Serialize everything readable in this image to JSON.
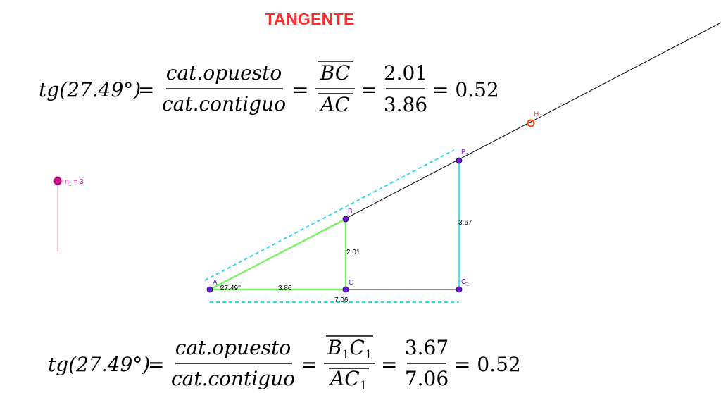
{
  "title": "TANGENTE",
  "colors": {
    "title": "#ff2a2a",
    "small_triangle": "#7ff06a",
    "big_triangle_leg": "#47e3ee",
    "dashed_guide": "#34d6ee",
    "point": "#6a1fd6",
    "slider": "#e0119a",
    "point_h": "#ff3a00"
  },
  "formula1": {
    "lhs": "tg(27.49°)",
    "eq": "=",
    "num1": "cat.opuesto",
    "den1": "cat.contiguo",
    "num2": "BC",
    "den2": "AC",
    "num3": "2.01",
    "den3": "3.86",
    "result": "= 0.52"
  },
  "formula2": {
    "lhs": "tg(27.49°)",
    "eq": "=",
    "num1": "cat.opuesto",
    "den1": "cat.contiguo",
    "num2_main1": "B",
    "num2_sub1": "1",
    "num2_main2": "C",
    "num2_sub2": "1",
    "den2_main": "AC",
    "den2_sub": "1",
    "num3": "3.67",
    "den3": "7.06",
    "result": "= 0.52"
  },
  "slider": {
    "name": "n",
    "sub": "1",
    "value_text": " = 3"
  },
  "points": {
    "A": "A",
    "B": "B",
    "C": "C",
    "B1_main": "B",
    "B1_sub": "1",
    "C1_main": "C",
    "C1_sub": "1",
    "H": "H"
  },
  "measures": {
    "angle": "27.49°",
    "AC": "3.86",
    "BC": "2.01",
    "B1C1": "3.67",
    "AC1": "7.06"
  }
}
